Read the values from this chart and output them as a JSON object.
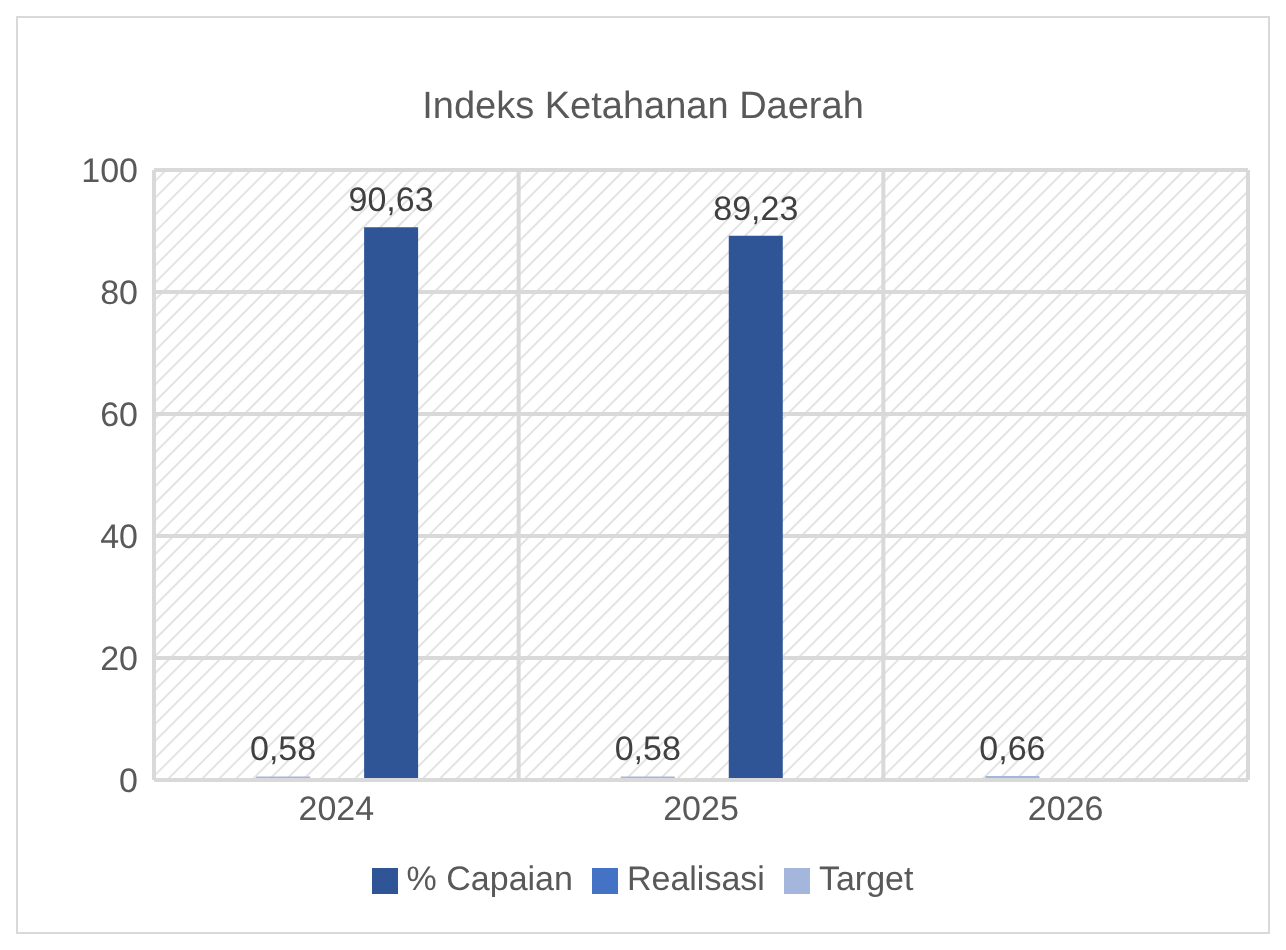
{
  "chart_data": {
    "type": "bar",
    "title": "Indeks Ketahanan Daerah",
    "categories": [
      "2024",
      "2025",
      "2026"
    ],
    "series": [
      {
        "name": "Target",
        "color": "#a5b6dc",
        "values": [
          0.58,
          0.58,
          0.66
        ],
        "value_labels": [
          "0,58",
          "0,58",
          "0,66"
        ]
      },
      {
        "name": "Realisasi",
        "color": "#4472c4",
        "values": [
          null,
          null,
          null
        ]
      },
      {
        "name": "% Capaian",
        "color": "#2f5597",
        "values": [
          90.63,
          89.23,
          null
        ],
        "value_labels": [
          "90,63",
          "89,23",
          null
        ]
      }
    ],
    "ylim": [
      0,
      100
    ],
    "yticks": [
      0,
      20,
      40,
      60,
      80,
      100
    ],
    "grid": true,
    "legend": "bottom"
  }
}
